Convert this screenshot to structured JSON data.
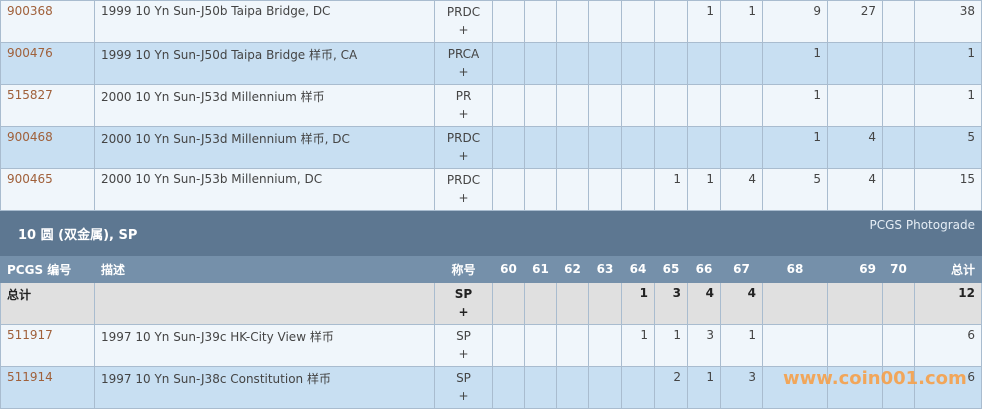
{
  "top_rows": [
    {
      "pcgs": "900368",
      "desc": "1999 10 Yn Sun-J50b Taipa Bridge, DC",
      "designation": "PRDC",
      "plus": "+",
      "grades": [
        "",
        "",
        "",
        "",
        "",
        "",
        "1",
        "1",
        "9",
        "27",
        ""
      ],
      "total": "38"
    },
    {
      "pcgs": "900476",
      "desc": "1999 10 Yn Sun-J50d Taipa Bridge 样币, CA",
      "designation": "PRCA",
      "plus": "+",
      "grades": [
        "",
        "",
        "",
        "",
        "",
        "",
        "",
        "",
        "1",
        "",
        ""
      ],
      "total": "1"
    },
    {
      "pcgs": "515827",
      "desc": "2000 10 Yn Sun-J53d Millennium 样币",
      "designation": "PR",
      "plus": "+",
      "grades": [
        "",
        "",
        "",
        "",
        "",
        "",
        "",
        "",
        "1",
        "",
        ""
      ],
      "total": "1"
    },
    {
      "pcgs": "900468",
      "desc": "2000 10 Yn Sun-J53d Millennium 样币, DC",
      "designation": "PRDC",
      "plus": "+",
      "grades": [
        "",
        "",
        "",
        "",
        "",
        "",
        "",
        "",
        "1",
        "4",
        ""
      ],
      "total": "5"
    },
    {
      "pcgs": "900465",
      "desc": "2000 10 Yn Sun-J53b Millennium, DC",
      "designation": "PRDC",
      "plus": "+",
      "grades": [
        "",
        "",
        "",
        "",
        "",
        "1",
        "1",
        "4",
        "5",
        "4",
        ""
      ],
      "total": "15"
    }
  ],
  "section": {
    "title": "10 圆 (双金属), SP",
    "photograde_link": "PCGS Photograde"
  },
  "columns": {
    "pcgs": "PCGS 编号",
    "desc": "描述",
    "designation": "称号",
    "grades": [
      "60",
      "61",
      "62",
      "63",
      "64",
      "65",
      "66",
      "67",
      "68",
      "69",
      "70"
    ],
    "total": "总计"
  },
  "total_row": {
    "label": "总计",
    "designation": "SP",
    "plus": "+",
    "grades": [
      "",
      "",
      "",
      "",
      "1",
      "3",
      "4",
      "4",
      "",
      "",
      ""
    ],
    "total": "12"
  },
  "bottom_rows": [
    {
      "pcgs": "511917",
      "desc": "1997 10 Yn Sun-J39c HK-City View 样币",
      "designation": "SP",
      "plus": "+",
      "grades": [
        "",
        "",
        "",
        "",
        "1",
        "1",
        "3",
        "1",
        "",
        "",
        ""
      ],
      "total": "6"
    },
    {
      "pcgs": "511914",
      "desc": "1997 10 Yn Sun-J38c Constitution 样币",
      "designation": "SP",
      "plus": "+",
      "grades": [
        "",
        "",
        "",
        "",
        "",
        "2",
        "1",
        "3",
        "",
        "",
        ""
      ],
      "total": "6"
    }
  ],
  "watermark": "www.coin001.com"
}
